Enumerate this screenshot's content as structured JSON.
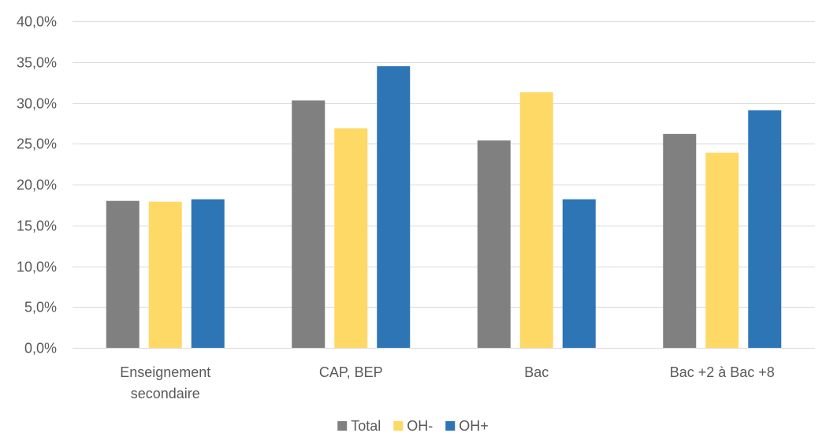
{
  "chart_data": {
    "type": "bar",
    "categories": [
      [
        "Enseignement",
        "secondaire"
      ],
      [
        "CAP, BEP"
      ],
      [
        "Bac"
      ],
      [
        "Bac +2 à Bac +8"
      ]
    ],
    "series": [
      {
        "name": "Total",
        "color": "#808080",
        "values": [
          18.0,
          30.3,
          25.4,
          26.2
        ]
      },
      {
        "name": "OH-",
        "color": "#ffd966",
        "values": [
          17.9,
          26.9,
          31.3,
          23.9
        ]
      },
      {
        "name": "OH+",
        "color": "#2e75b6",
        "values": [
          18.2,
          34.5,
          18.2,
          29.1
        ]
      }
    ],
    "ylim": [
      0,
      40
    ],
    "yticks": [
      0,
      5,
      10,
      15,
      20,
      25,
      30,
      35,
      40
    ],
    "ytick_labels": [
      "0,0%",
      "5,0%",
      "10,0%",
      "15,0%",
      "20,0%",
      "25,0%",
      "30,0%",
      "35,0%",
      "40,0%"
    ],
    "grid": true,
    "legend_position": "bottom-center",
    "title": "",
    "xlabel": "",
    "ylabel": ""
  }
}
